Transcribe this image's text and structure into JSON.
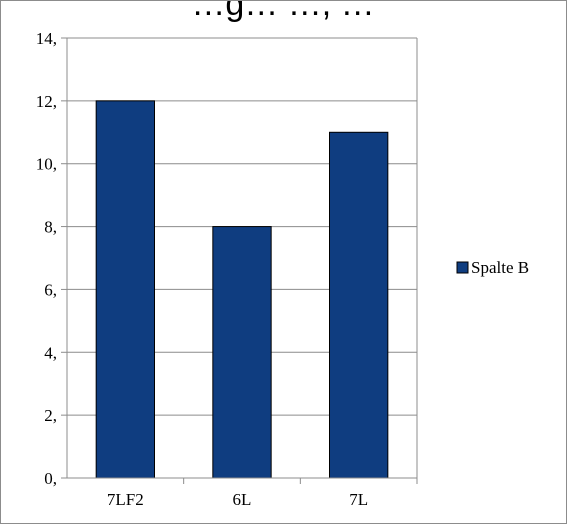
{
  "chart_data": {
    "type": "bar",
    "title": "…g… …, …",
    "categories": [
      "7LF2",
      "6L",
      "7L"
    ],
    "series": [
      {
        "name": "Spalte B",
        "values": [
          12,
          8,
          11
        ],
        "color": "#0f3d80"
      }
    ],
    "ylim": [
      0,
      14
    ],
    "y_ticks": [
      "0,",
      "2,",
      "4,",
      "6,",
      "8,",
      "10,",
      "12,",
      "14,"
    ],
    "grid": true,
    "legend_position": "right",
    "xlabel": "",
    "ylabel": ""
  },
  "colors": {
    "bar_fill": "#0f3d80",
    "bar_stroke": "#000000",
    "gridline": "#8c8c8c",
    "axis": "#8c8c8c"
  }
}
